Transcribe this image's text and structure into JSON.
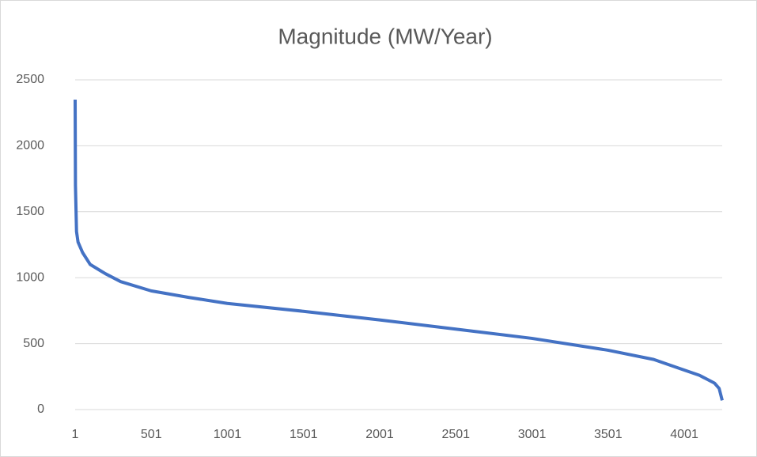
{
  "chart_data": {
    "type": "line",
    "title": "Magnitude (MW/Year)",
    "x": [
      1,
      3,
      10,
      20,
      50,
      100,
      200,
      300,
      500,
      750,
      1000,
      1500,
      2000,
      2500,
      3000,
      3500,
      3800,
      4000,
      4100,
      4200,
      4230,
      4250
    ],
    "series": [
      {
        "name": "Magnitude",
        "color": "#4472c4",
        "values": [
          2350,
          1700,
          1350,
          1270,
          1190,
          1100,
          1030,
          970,
          900,
          850,
          805,
          745,
          680,
          610,
          540,
          450,
          380,
          300,
          260,
          200,
          160,
          70
        ]
      }
    ],
    "xlim": [
      1,
      4250
    ],
    "xticks": [
      1,
      501,
      1001,
      1501,
      2001,
      2501,
      3001,
      3501,
      4001
    ],
    "ylim": [
      0,
      2500
    ],
    "yticks": [
      0,
      500,
      1000,
      1500,
      2000,
      2500
    ],
    "grid": true
  }
}
